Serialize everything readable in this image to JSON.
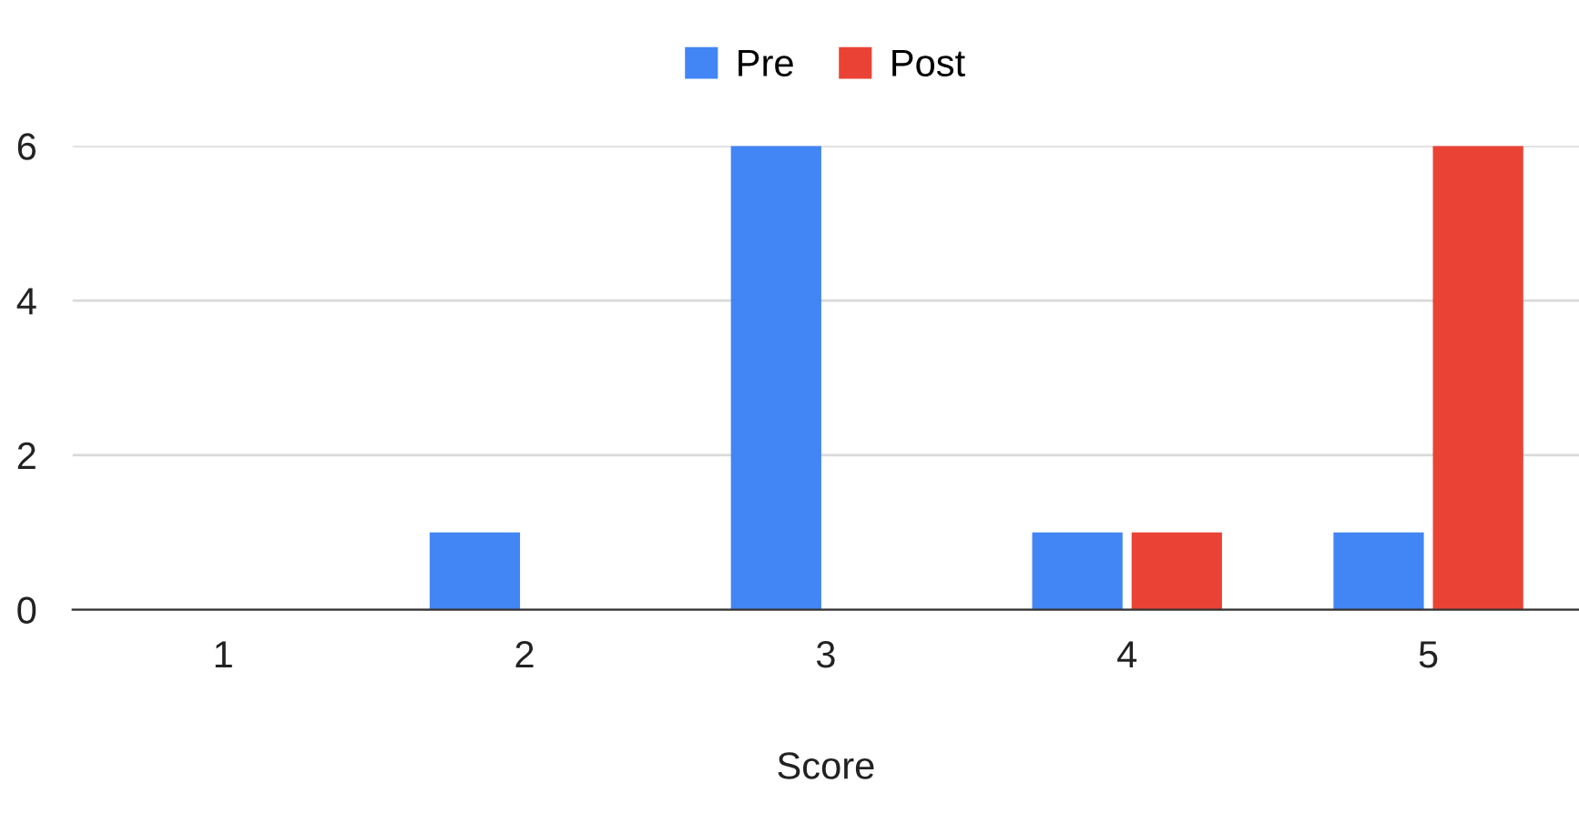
{
  "chart_data": {
    "type": "bar",
    "xlabel": "Score",
    "categories": [
      "1",
      "2",
      "3",
      "4",
      "5"
    ],
    "series": [
      {
        "name": "Pre",
        "color": "#4285f4",
        "values": [
          0,
          1,
          6,
          1,
          1
        ]
      },
      {
        "name": "Post",
        "color": "#ea4335",
        "values": [
          0,
          0,
          0,
          1,
          6
        ]
      }
    ],
    "ylim": [
      0,
      6
    ],
    "yticks": [
      0,
      2,
      4,
      6
    ],
    "grid": "y",
    "legend": "top"
  }
}
